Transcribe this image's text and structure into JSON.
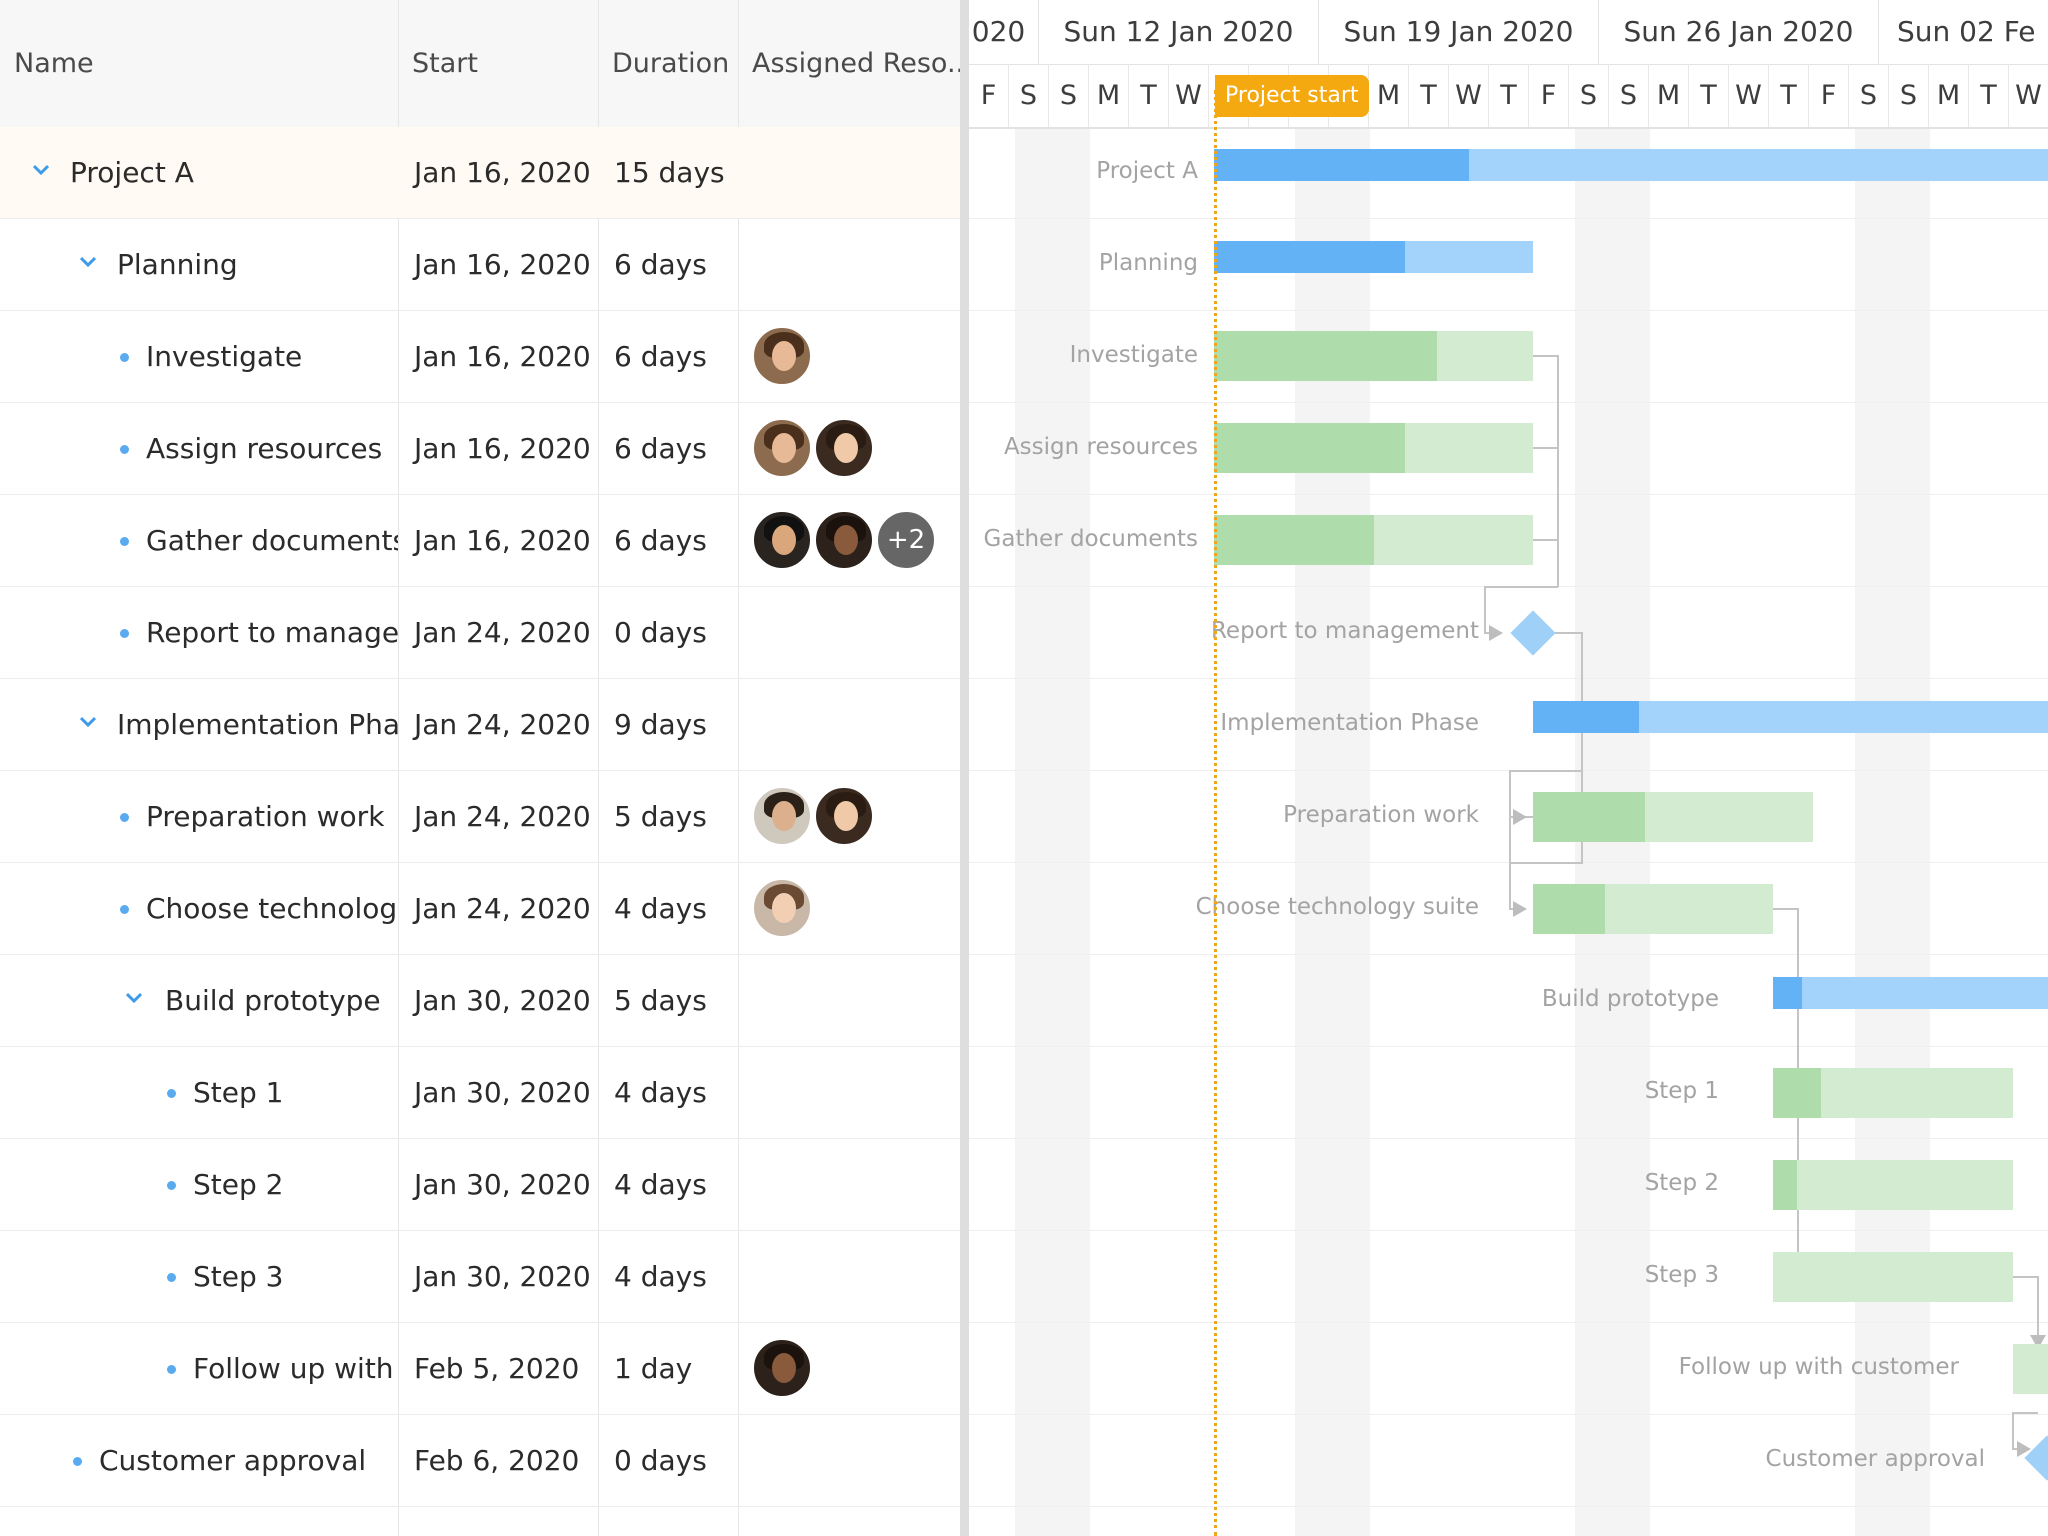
{
  "grid": {
    "columns": {
      "name": "Name",
      "start": "Start",
      "duration": "Duration",
      "resources": "Assigned Reso..."
    },
    "rows": [
      {
        "name": "Project A",
        "start": "Jan 16, 2020",
        "duration": "15 days"
      },
      {
        "name": "Planning",
        "start": "Jan 16, 2020",
        "duration": "6 days"
      },
      {
        "name": "Investigate",
        "start": "Jan 16, 2020",
        "duration": "6 days"
      },
      {
        "name": "Assign resources",
        "start": "Jan 16, 2020",
        "duration": "6 days"
      },
      {
        "name": "Gather documents",
        "start": "Jan 16, 2020",
        "duration": "6 days",
        "more": "+2"
      },
      {
        "name": "Report to manageme",
        "start": "Jan 24, 2020",
        "duration": "0 days"
      },
      {
        "name": "Implementation Phase",
        "start": "Jan 24, 2020",
        "duration": "9 days"
      },
      {
        "name": "Preparation work",
        "start": "Jan 24, 2020",
        "duration": "5 days"
      },
      {
        "name": "Choose technology s",
        "start": "Jan 24, 2020",
        "duration": "4 days"
      },
      {
        "name": "Build prototype",
        "start": "Jan 30, 2020",
        "duration": "5 days"
      },
      {
        "name": "Step 1",
        "start": "Jan 30, 2020",
        "duration": "4 days"
      },
      {
        "name": "Step 2",
        "start": "Jan 30, 2020",
        "duration": "4 days"
      },
      {
        "name": "Step 3",
        "start": "Jan 30, 2020",
        "duration": "4 days"
      },
      {
        "name": "Follow up with cu",
        "start": "Feb 5, 2020",
        "duration": "1 day"
      },
      {
        "name": "Customer approval",
        "start": "Feb 6, 2020",
        "duration": "0 days"
      }
    ]
  },
  "timeline": {
    "weeks": [
      "020",
      "Sun 12 Jan 2020",
      "Sun 19 Jan 2020",
      "Sun 26 Jan 2020",
      "Sun 02 Fe"
    ],
    "days": [
      "F",
      "S",
      "S",
      "M",
      "T",
      "W",
      "T",
      "F",
      "S",
      "S",
      "M",
      "T",
      "W",
      "T",
      "F",
      "S",
      "S",
      "M",
      "T",
      "W",
      "T",
      "F",
      "S",
      "S",
      "M",
      "T",
      "W"
    ],
    "project_start_label": "Project start",
    "bar_labels": [
      "Project A",
      "Planning",
      "Investigate",
      "Assign resources",
      "Gather documents",
      "Report to management",
      "Implementation Phase",
      "Preparation work",
      "Choose technology suite",
      "Build prototype",
      "Step 1",
      "Step 2",
      "Step 3",
      "Follow up with customer",
      "Customer approval"
    ],
    "progress_fraction": {
      "project_a": 0.3,
      "planning": 0.6,
      "investigate": 0.7,
      "assign_resources": 0.6,
      "gather_documents": 0.5,
      "implementation_phase": 0.2,
      "preparation_work": 0.4,
      "choose_technology_suite": 0.3,
      "build_prototype": 0.1,
      "step_1": 0.2,
      "step_2": 0.1,
      "step_3": 0.0,
      "follow_up_with_customer": 0.0
    }
  },
  "colors": {
    "accent": "#5aaaf0",
    "parent_done": "#62b2f5",
    "parent_todo": "#a3d3fa",
    "leaf_done": "#aedcab",
    "leaf_todo": "#d3ebd1",
    "today": "#f5a910"
  }
}
